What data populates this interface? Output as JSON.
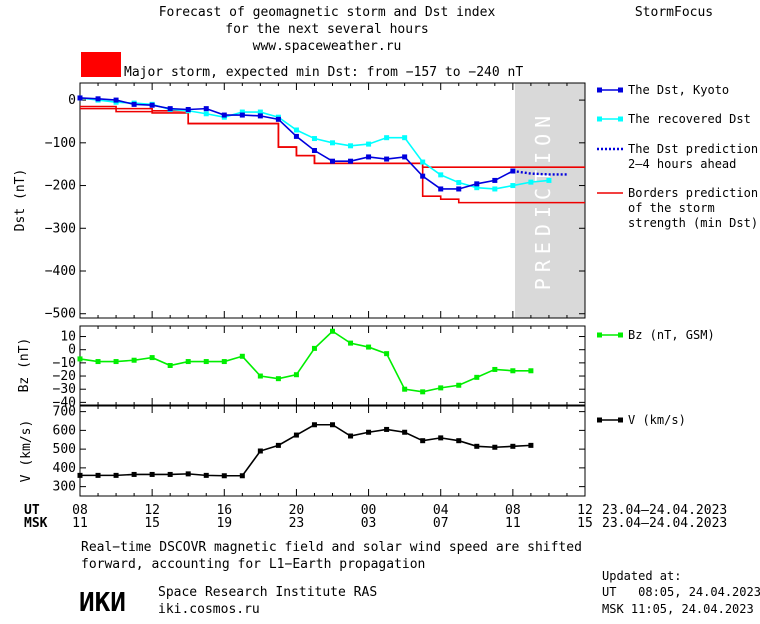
{
  "header": {
    "title_line1": "Forecast of geomagnetic storm and Dst index",
    "title_line2": "for the next several hours",
    "website": "www.spaceweather.ru",
    "brand": "StormFocus",
    "alert_color": "#ff0000",
    "alert_text": "Major storm, expected min Dst: from −157 to −240 nT"
  },
  "legend": {
    "dst_kyoto": "The Dst, Kyoto",
    "dst_recovered": "The recovered Dst",
    "dst_prediction_line1": "The Dst prediction",
    "dst_prediction_line2": "2–4 hours ahead",
    "borders_line1": "Borders prediction",
    "borders_line2": "of the storm",
    "borders_line3": "strength (min Dst)",
    "bz": "Bz (nT, GSM)",
    "v": "V (km/s)"
  },
  "prediction_label": "PREDICTION",
  "time_axis": {
    "ut_label": "UT",
    "msk_label": "MSK",
    "ut_ticks": [
      "08",
      "12",
      "16",
      "20",
      "00",
      "04",
      "08",
      "12"
    ],
    "msk_ticks": [
      "11",
      "15",
      "19",
      "23",
      "03",
      "07",
      "11",
      "15"
    ],
    "date_range_ut": "23.04–24.04.2023",
    "date_range_msk": "23.04–24.04.2023"
  },
  "footer": {
    "note_line1": "Real−time DSCOVR magnetic field and solar wind speed are shifted",
    "note_line2": "forward, accounting for L1−Earth propagation",
    "logo_text": "ИКИ",
    "institute": "Space Research Institute RAS",
    "site": "iki.cosmos.ru",
    "updated_label": "Updated at:",
    "updated_ut": "UT   08:05, 24.04.2023",
    "updated_msk": "MSK 11:05, 24.04.2023"
  },
  "colors": {
    "dst_kyoto": "#0000dd",
    "dst_recovered": "#00ffff",
    "dst_prediction": "#0000dd",
    "borders": "#ee0000",
    "bz": "#00ee00",
    "v": "#000000",
    "prediction_band": "#d9d9d9"
  },
  "chart_data": [
    {
      "type": "line",
      "panel": "dst",
      "ylabel": "Dst (nT)",
      "x_unit": "hours since 08 UT 23.04.2023",
      "xlim": [
        0,
        28
      ],
      "ylim": [
        -510,
        40
      ],
      "yticks": [
        0,
        -100,
        -200,
        -300,
        -400,
        -500
      ],
      "ytick_labels": [
        "0",
        "−100",
        "−200",
        "−300",
        "−400",
        "−500"
      ],
      "prediction_region_x": [
        24,
        28
      ],
      "series": [
        {
          "name": "The Dst, Kyoto",
          "x": [
            0,
            1,
            2,
            3,
            4,
            5,
            6,
            7,
            8,
            9,
            10,
            11,
            12,
            13,
            14,
            15,
            16,
            17,
            18,
            19,
            20,
            21,
            22,
            23,
            24
          ],
          "y": [
            5,
            3,
            0,
            -10,
            -12,
            -20,
            -22,
            -20,
            -35,
            -35,
            -37,
            -45,
            -85,
            -118,
            -143,
            -143,
            -133,
            -138,
            -133,
            -178,
            -208,
            -208,
            -196,
            -188,
            -166
          ]
        },
        {
          "name": "The recovered Dst",
          "x": [
            0,
            1,
            2,
            3,
            4,
            5,
            6,
            7,
            8,
            9,
            10,
            11,
            12,
            13,
            14,
            15,
            16,
            17,
            18,
            19,
            20,
            21,
            22,
            23,
            24,
            25,
            26
          ],
          "y": [
            5,
            0,
            -5,
            -7,
            -10,
            -22,
            -25,
            -32,
            -40,
            -28,
            -28,
            -40,
            -70,
            -90,
            -100,
            -107,
            -103,
            -88,
            -88,
            -145,
            -175,
            -193,
            -205,
            -208,
            -200,
            -192,
            -188
          ]
        },
        {
          "name": "The Dst prediction",
          "x": [
            24,
            25,
            26,
            27
          ],
          "y": [
            -166,
            -172,
            -174,
            -174
          ]
        },
        {
          "name": "Borders prediction of the storm strength (min Dst)",
          "step": true,
          "x": [
            0,
            2,
            4,
            5,
            6,
            7,
            8,
            9,
            10,
            11,
            12,
            13,
            14,
            15,
            16,
            17,
            18,
            19,
            20,
            21,
            22,
            23,
            24,
            28
          ],
          "y_upper": [
            -15,
            -20,
            -25,
            -25,
            -55,
            -55,
            -55,
            -55,
            -55,
            -110,
            -130,
            -148,
            -148,
            -148,
            -148,
            -148,
            -148,
            -157,
            -157,
            -157,
            -157,
            -157,
            -157,
            -157
          ],
          "y_lower": [
            -20,
            -27,
            -30,
            -30,
            -55,
            -55,
            -55,
            -55,
            -55,
            -110,
            -130,
            -148,
            -148,
            -148,
            -148,
            -148,
            -148,
            -225,
            -232,
            -240,
            -240,
            -240,
            -240,
            -240
          ]
        }
      ]
    },
    {
      "type": "line",
      "panel": "bz",
      "ylabel": "Bz (nT)",
      "xlim": [
        0,
        28
      ],
      "ylim": [
        -42,
        18
      ],
      "yticks": [
        10,
        0,
        -10,
        -20,
        -30,
        -40
      ],
      "ytick_labels": [
        "10",
        "0",
        "−10",
        "−20",
        "−30",
        "−40"
      ],
      "series": [
        {
          "name": "Bz (nT, GSM)",
          "x": [
            0,
            1,
            2,
            3,
            4,
            5,
            6,
            7,
            8,
            9,
            10,
            11,
            12,
            13,
            14,
            15,
            16,
            17,
            18,
            19,
            20,
            21,
            22,
            23,
            24,
            25
          ],
          "y": [
            -7,
            -9,
            -9,
            -8,
            -6,
            -12,
            -9,
            -9,
            -9,
            -5,
            -20,
            -22,
            -19,
            1,
            14,
            5,
            2,
            -3,
            -30,
            -32,
            -29,
            -27,
            -21,
            -15,
            -16,
            -16
          ]
        }
      ]
    },
    {
      "type": "line",
      "panel": "v",
      "ylabel": "V (km/s)",
      "xlim": [
        0,
        28
      ],
      "ylim": [
        250,
        730
      ],
      "yticks": [
        700,
        600,
        500,
        400,
        300
      ],
      "ytick_labels": [
        "700",
        "600",
        "500",
        "400",
        "300"
      ],
      "series": [
        {
          "name": "V (km/s)",
          "x": [
            0,
            1,
            2,
            3,
            4,
            5,
            6,
            7,
            8,
            9,
            10,
            11,
            12,
            13,
            14,
            15,
            16,
            17,
            18,
            19,
            20,
            21,
            22,
            23,
            24,
            25
          ],
          "y": [
            360,
            360,
            360,
            365,
            365,
            365,
            368,
            360,
            358,
            358,
            490,
            520,
            575,
            630,
            630,
            570,
            590,
            605,
            590,
            545,
            560,
            545,
            515,
            510,
            515,
            520
          ]
        }
      ]
    }
  ]
}
